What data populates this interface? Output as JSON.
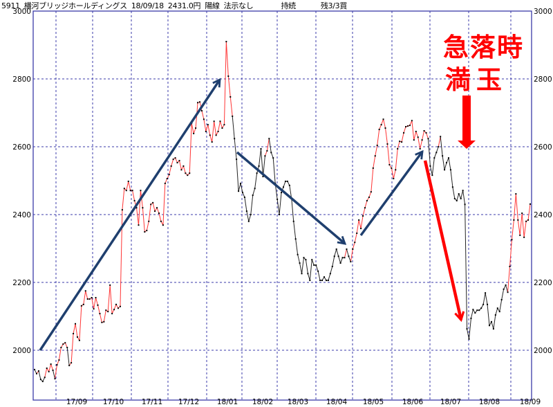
{
  "header": {
    "code": "5911",
    "name": "横河ブリッジホールディングス",
    "date": "18/09/18",
    "price": "2431.0円",
    "candle": "陽線",
    "signal": "法示なし",
    "status": "持続",
    "position": "残3/3買"
  },
  "annotations": {
    "line1": "急落時",
    "line2": "満玉",
    "red": "#ff0000",
    "blue": "#1f3f6e"
  },
  "chart_data": {
    "type": "line",
    "title": "",
    "xlabel": "",
    "ylabel": "",
    "ylim": [
      1850,
      3000
    ],
    "grid": true,
    "y_ticks": [
      "2000",
      "2200",
      "2400",
      "2600",
      "2800",
      "3000"
    ],
    "x_ticks": [
      "17/09",
      "17/10",
      "17/11",
      "17/12",
      "18/01",
      "18/02",
      "18/03",
      "18/04",
      "18/05",
      "18/06",
      "18/07",
      "18/08",
      "18/09"
    ],
    "up_color": "#ff3333",
    "down_color": "#222222",
    "closes": [
      1943,
      1931,
      1939,
      1914,
      1908,
      1920,
      1947,
      1937,
      1959,
      1941,
      1916,
      1957,
      1971,
      2008,
      2018,
      2022,
      2008,
      1955,
      1963,
      2049,
      2078,
      2039,
      2029,
      2131,
      2135,
      2175,
      2151,
      2151,
      2155,
      2122,
      2155,
      2133,
      2108,
      2082,
      2084,
      2118,
      2114,
      2192,
      2108,
      2120,
      2135,
      2124,
      2129,
      2414,
      2477,
      2471,
      2498,
      2471,
      2471,
      2441,
      2420,
      2369,
      2471,
      2420,
      2349,
      2353,
      2380,
      2430,
      2435,
      2410,
      2420,
      2404,
      2380,
      2369,
      2492,
      2506,
      2518,
      2543,
      2563,
      2567,
      2553,
      2559,
      2532,
      2543,
      2522,
      2516,
      2522,
      2669,
      2639,
      2655,
      2730,
      2732,
      2706,
      2681,
      2645,
      2665,
      2634,
      2614,
      2675,
      2634,
      2645,
      2675,
      2655,
      2665,
      2910,
      2808,
      2747,
      2690,
      2624,
      2563,
      2469,
      2492,
      2465,
      2451,
      2410,
      2380,
      2400,
      2457,
      2477,
      2522,
      2543,
      2594,
      2512,
      2573,
      2588,
      2624,
      2583,
      2567,
      2492,
      2445,
      2400,
      2465,
      2481,
      2498,
      2498,
      2486,
      2447,
      2380,
      2328,
      2282,
      2257,
      2226,
      2273,
      2267,
      2226,
      2206,
      2267,
      2251,
      2251,
      2233,
      2206,
      2206,
      2216,
      2206,
      2206,
      2226,
      2247,
      2277,
      2298,
      2277,
      2257,
      2273,
      2273,
      2298,
      2277,
      2261,
      2298,
      2318,
      2345,
      2384,
      2359,
      2396,
      2420,
      2441,
      2451,
      2467,
      2537,
      2573,
      2604,
      2651,
      2665,
      2681,
      2655,
      2608,
      2547,
      2537,
      2506,
      2532,
      2594,
      2616,
      2614,
      2641,
      2659,
      2661,
      2663,
      2677,
      2620,
      2645,
      2628,
      2594,
      2620,
      2647,
      2641,
      2624,
      2543,
      2516,
      2567,
      2583,
      2600,
      2630,
      2573,
      2532,
      2553,
      2567,
      2532,
      2481,
      2447,
      2441,
      2461,
      2447,
      2471,
      2430,
      2063,
      2033,
      2094,
      2120,
      2110,
      2118,
      2118,
      2124,
      2135,
      2169,
      2135,
      2073,
      2084,
      2063,
      2104,
      2124,
      2114,
      2149,
      2180,
      2192,
      2171,
      2247,
      2326,
      2384,
      2461,
      2384,
      2339,
      2404,
      2333,
      2380,
      2384,
      2431
    ]
  }
}
